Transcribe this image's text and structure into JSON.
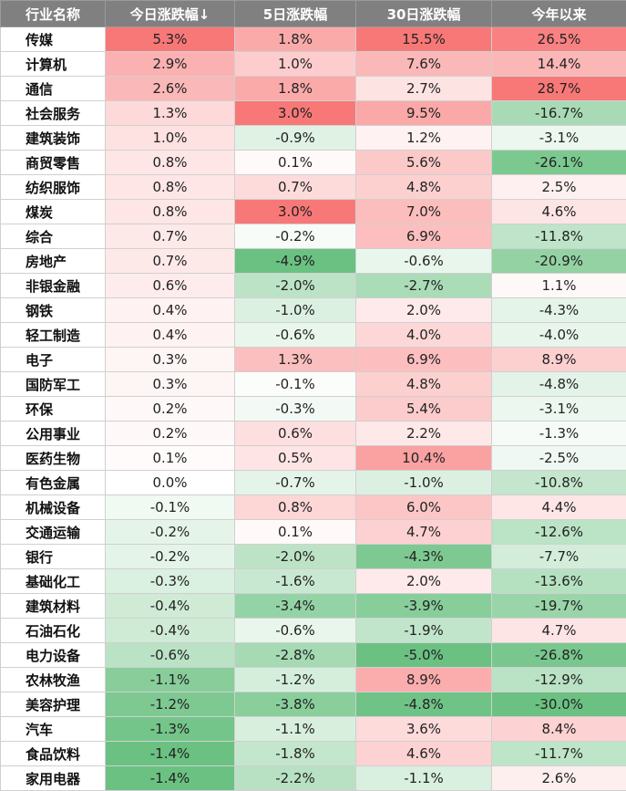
{
  "chart_data": {
    "type": "table",
    "columns": [
      "行业名称",
      "今日涨跌幅↓",
      "5日涨跌幅",
      "30日涨跌幅",
      "今年以来"
    ],
    "rows": [
      [
        "传媒",
        "5.3%",
        "1.8%",
        "15.5%",
        "26.5%"
      ],
      [
        "计算机",
        "2.9%",
        "1.0%",
        "7.6%",
        "14.4%"
      ],
      [
        "通信",
        "2.6%",
        "1.8%",
        "2.7%",
        "28.7%"
      ],
      [
        "社会服务",
        "1.3%",
        "3.0%",
        "9.5%",
        "-16.7%"
      ],
      [
        "建筑装饰",
        "1.0%",
        "-0.9%",
        "1.2%",
        "-3.1%"
      ],
      [
        "商贸零售",
        "0.8%",
        "0.1%",
        "5.6%",
        "-26.1%"
      ],
      [
        "纺织服饰",
        "0.8%",
        "0.7%",
        "4.8%",
        "2.5%"
      ],
      [
        "煤炭",
        "0.8%",
        "3.0%",
        "7.0%",
        "4.6%"
      ],
      [
        "综合",
        "0.7%",
        "-0.2%",
        "6.9%",
        "-11.8%"
      ],
      [
        "房地产",
        "0.7%",
        "-4.9%",
        "-0.6%",
        "-20.9%"
      ],
      [
        "非银金融",
        "0.6%",
        "-2.0%",
        "-2.7%",
        "1.1%"
      ],
      [
        "钢铁",
        "0.4%",
        "-1.0%",
        "2.0%",
        "-4.3%"
      ],
      [
        "轻工制造",
        "0.4%",
        "-0.6%",
        "4.0%",
        "-4.0%"
      ],
      [
        "电子",
        "0.3%",
        "1.3%",
        "6.9%",
        "8.9%"
      ],
      [
        "国防军工",
        "0.3%",
        "-0.1%",
        "4.8%",
        "-4.8%"
      ],
      [
        "环保",
        "0.2%",
        "-0.3%",
        "5.4%",
        "-3.1%"
      ],
      [
        "公用事业",
        "0.2%",
        "0.6%",
        "2.2%",
        "-1.3%"
      ],
      [
        "医药生物",
        "0.1%",
        "0.5%",
        "10.4%",
        "-2.5%"
      ],
      [
        "有色金属",
        "0.0%",
        "-0.7%",
        "-1.0%",
        "-10.8%"
      ],
      [
        "机械设备",
        "-0.1%",
        "0.8%",
        "6.0%",
        "4.4%"
      ],
      [
        "交通运输",
        "-0.2%",
        "0.1%",
        "4.7%",
        "-12.6%"
      ],
      [
        "银行",
        "-0.2%",
        "-2.0%",
        "-4.3%",
        "-7.7%"
      ],
      [
        "基础化工",
        "-0.3%",
        "-1.6%",
        "2.0%",
        "-13.6%"
      ],
      [
        "建筑材料",
        "-0.4%",
        "-3.4%",
        "-3.9%",
        "-19.7%"
      ],
      [
        "石油石化",
        "-0.4%",
        "-0.6%",
        "-1.9%",
        "4.7%"
      ],
      [
        "电力设备",
        "-0.6%",
        "-2.8%",
        "-5.0%",
        "-26.8%"
      ],
      [
        "农林牧渔",
        "-1.1%",
        "-1.2%",
        "8.9%",
        "-12.9%"
      ],
      [
        "美容护理",
        "-1.2%",
        "-3.8%",
        "-4.8%",
        "-30.0%"
      ],
      [
        "汽车",
        "-1.3%",
        "-1.1%",
        "3.6%",
        "8.4%"
      ],
      [
        "食品饮料",
        "-1.4%",
        "-1.8%",
        "4.6%",
        "-11.7%"
      ],
      [
        "家用电器",
        "-1.4%",
        "-2.2%",
        "-1.1%",
        "2.6%"
      ]
    ],
    "color_scale": {
      "positive": "#f87171",
      "negative": "#63be7b",
      "neutral": "#ffffff"
    }
  }
}
